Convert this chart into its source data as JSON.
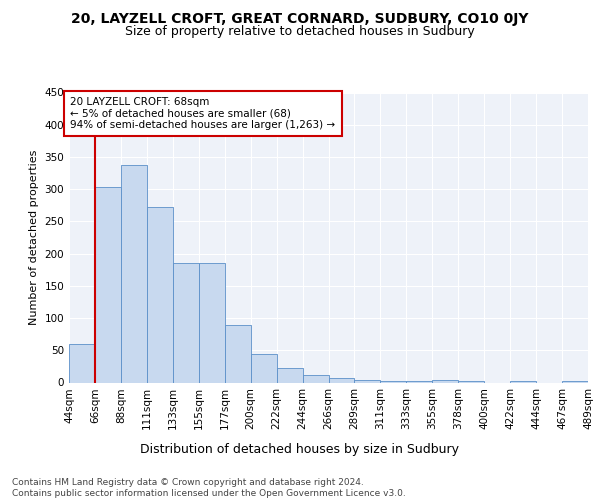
{
  "title1": "20, LAYZELL CROFT, GREAT CORNARD, SUDBURY, CO10 0JY",
  "title2": "Size of property relative to detached houses in Sudbury",
  "xlabel": "Distribution of detached houses by size in Sudbury",
  "ylabel": "Number of detached properties",
  "bar_values": [
    60,
    303,
    338,
    272,
    185,
    185,
    90,
    45,
    22,
    12,
    7,
    4,
    2,
    3,
    4,
    2,
    0,
    2,
    0,
    3
  ],
  "bar_labels": [
    "44sqm",
    "66sqm",
    "88sqm",
    "111sqm",
    "133sqm",
    "155sqm",
    "177sqm",
    "200sqm",
    "222sqm",
    "244sqm",
    "266sqm",
    "289sqm",
    "311sqm",
    "333sqm",
    "355sqm",
    "378sqm",
    "400sqm",
    "422sqm",
    "444sqm",
    "467sqm",
    "489sqm"
  ],
  "bar_color": "#c8d9ef",
  "bar_edge_color": "#5b8fc9",
  "vline_x": 1,
  "vline_color": "#cc0000",
  "annotation_text": "20 LAYZELL CROFT: 68sqm\n← 5% of detached houses are smaller (68)\n94% of semi-detached houses are larger (1,263) →",
  "annotation_box_color": "#ffffff",
  "annotation_box_edge": "#cc0000",
  "footer": "Contains HM Land Registry data © Crown copyright and database right 2024.\nContains public sector information licensed under the Open Government Licence v3.0.",
  "ylim": [
    0,
    450
  ],
  "yticks": [
    0,
    50,
    100,
    150,
    200,
    250,
    300,
    350,
    400,
    450
  ],
  "background_color": "#eef2f9",
  "grid_color": "#ffffff",
  "title1_fontsize": 10,
  "title2_fontsize": 9,
  "xlabel_fontsize": 9,
  "ylabel_fontsize": 8,
  "tick_fontsize": 7.5,
  "ann_fontsize": 7.5,
  "footer_fontsize": 6.5
}
